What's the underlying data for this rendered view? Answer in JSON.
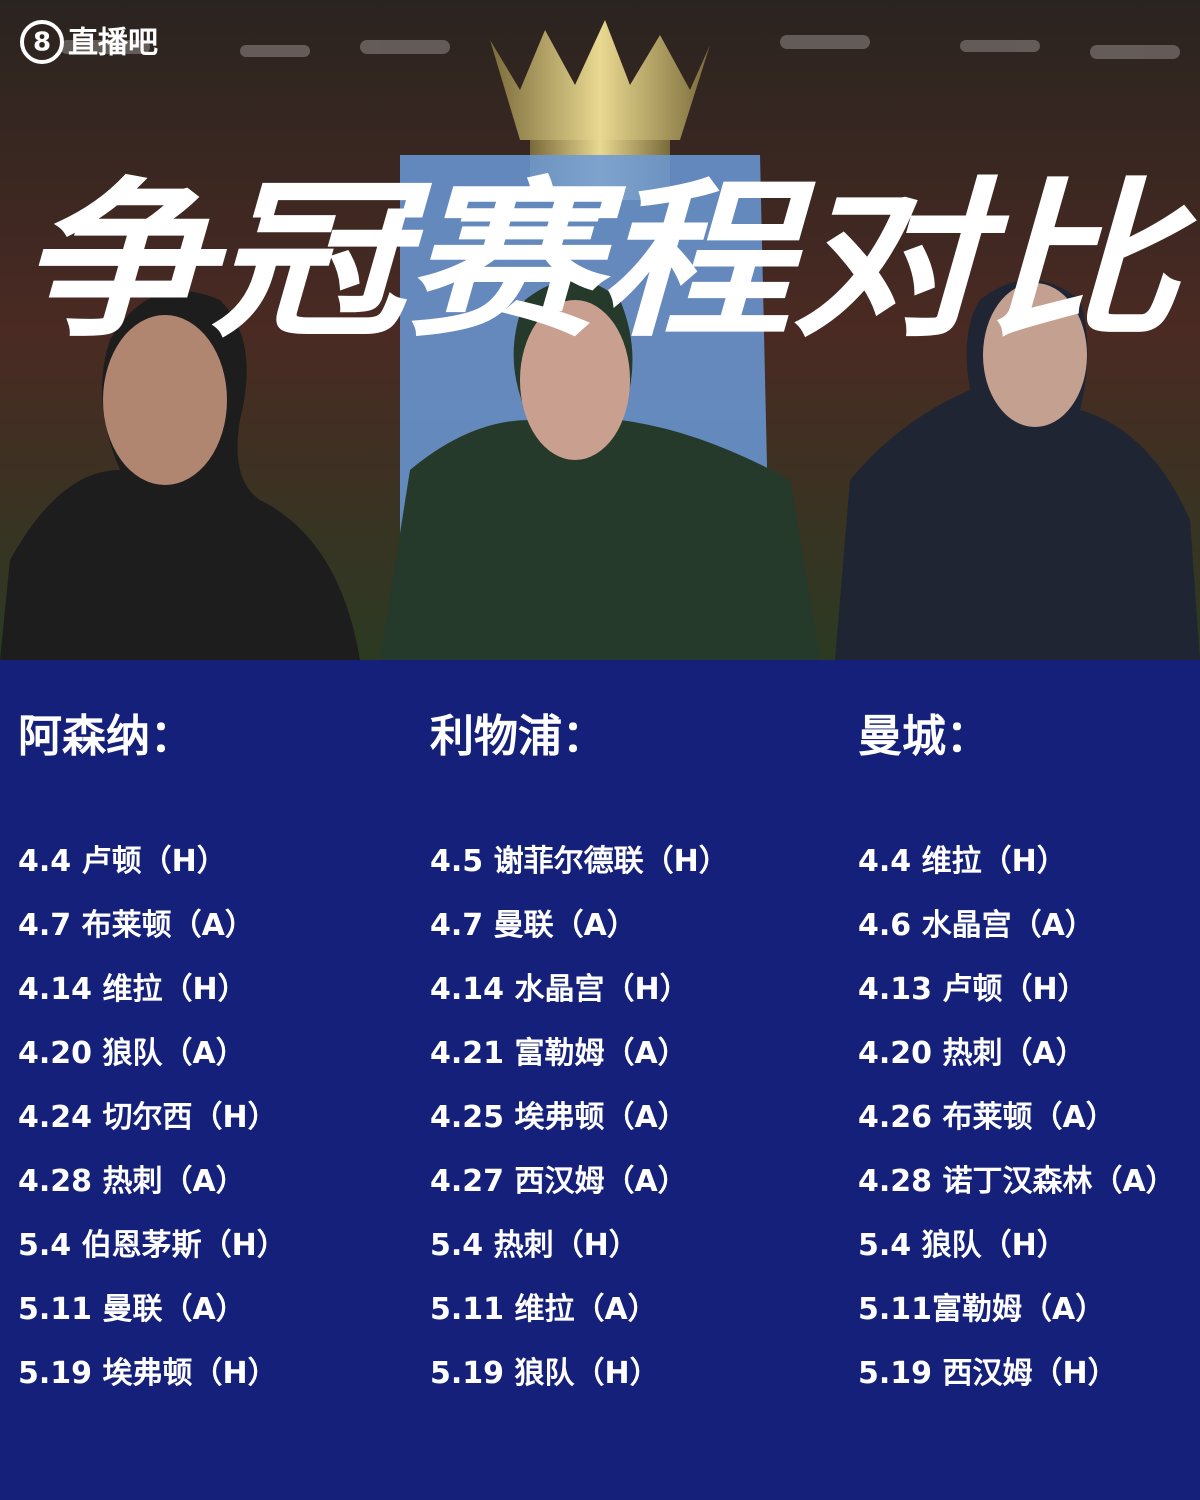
{
  "logo": {
    "mark": "8",
    "text": "直播吧"
  },
  "title": "争冠赛程对比",
  "columns": [
    {
      "team": "阿森纳：",
      "fixtures": [
        "4.4 卢顿（H）",
        "4.7 布莱顿（A）",
        "4.14 维拉（H）",
        "4.20 狼队（A）",
        "4.24 切尔西（H）",
        "4.28 热刺（A）",
        "5.4 伯恩茅斯（H）",
        "5.11 曼联（A）",
        "5.19 埃弗顿（H）"
      ]
    },
    {
      "team": "利物浦：",
      "fixtures": [
        "4.5 谢菲尔德联（H）",
        "4.7 曼联（A）",
        "4.14 水晶宫（H）",
        "4.21 富勒姆（A）",
        "4.25 埃弗顿（A）",
        "4.27 西汉姆（A）",
        "5.4 热刺（H）",
        "5.11 维拉（A）",
        "5.19 狼队（H）"
      ]
    },
    {
      "team": "曼城：",
      "fixtures": [
        "4.4 维拉（H）",
        "4.6 水晶宫（A）",
        "4.13 卢顿（H）",
        "4.20 热刺（A）",
        "4.26 布莱顿（A）",
        "4.28 诺丁汉森林（A）",
        "5.4 狼队（H）",
        "5.11富勒姆（A）",
        "5.19 西汉姆（H）"
      ]
    }
  ]
}
